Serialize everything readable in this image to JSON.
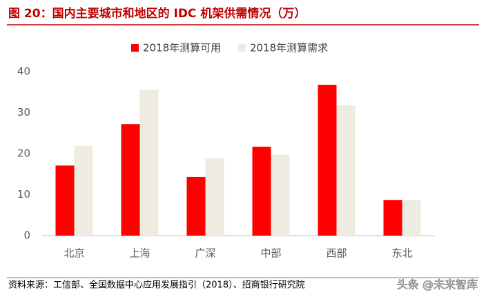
{
  "header": {
    "title": "图 20：国内主要城市和地区的 IDC 机架供需情况（万）"
  },
  "chart_data": {
    "type": "bar",
    "categories": [
      "北京",
      "上海",
      "广深",
      "中部",
      "西部",
      "东北"
    ],
    "series": [
      {
        "name": "2018年测算可用",
        "color": "#ff0000",
        "values": [
          17.1,
          27.2,
          14.3,
          21.7,
          36.8,
          8.7
        ]
      },
      {
        "name": "2018年测算需求",
        "color": "#eeebe0",
        "values": [
          21.9,
          35.6,
          18.8,
          19.7,
          31.8,
          8.7
        ]
      }
    ],
    "ylim": [
      0,
      40
    ],
    "yticks": [
      0,
      10,
      20,
      30,
      40
    ],
    "grid": false,
    "legend": "top"
  },
  "footer": {
    "source": "资料来源：工信部、全国数据中心应用发展指引（2018）、招商银行研究院",
    "watermark": "头条 @未来智库"
  }
}
